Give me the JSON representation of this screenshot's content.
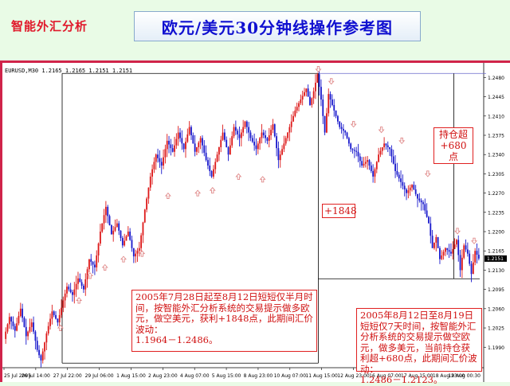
{
  "header": {
    "brand": "智能外汇分析",
    "title": "欧元/美元30分钟线操作参考图"
  },
  "chart_data": {
    "type": "candlestick",
    "symbol_info": "EURUSD,M30  1.2165 1.2165 1.2151 1.2151",
    "current_price": 1.2151,
    "current_price_label": "1.2151",
    "ylim": [
      1.196,
      1.2495
    ],
    "y_ticks": [
      "1.2480",
      "1.2445",
      "1.2410",
      "1.2375",
      "1.2340",
      "1.2305",
      "1.2270",
      "1.2235",
      "1.2200",
      "1.2165",
      "1.2130",
      "1.2095",
      "1.2060",
      "1.2025",
      "1.1990"
    ],
    "x_ticks": [
      "25 Jul 2005",
      "26 Jul 14:00",
      "27 Jul 22:00",
      "29 Jul 06:00",
      "1 Aug 15:00",
      "2 Aug 23:00",
      "4 Aug 07:00",
      "5 Aug 15:00",
      "8 Aug 23:00",
      "10 Aug 07:00",
      "11 Aug 15:00",
      "12 Aug 23:00",
      "16 Aug 07:00",
      "17 Aug 15:00",
      "18 Aug 23:00",
      "19 Aug 00:30"
    ],
    "price_path": [
      [
        0,
        1.2005
      ],
      [
        3,
        1.2045
      ],
      [
        6,
        1.202
      ],
      [
        9,
        1.206
      ],
      [
        12,
        1.201
      ],
      [
        15,
        1.2035
      ],
      [
        18,
        1.1985
      ],
      [
        20,
        1.1966
      ],
      [
        23,
        1.2015
      ],
      [
        26,
        1.2055
      ],
      [
        29,
        1.2035
      ],
      [
        32,
        1.2075
      ],
      [
        34,
        1.21
      ],
      [
        37,
        1.2085
      ],
      [
        40,
        1.2115
      ],
      [
        43,
        1.2095
      ],
      [
        46,
        1.215
      ],
      [
        49,
        1.2135
      ],
      [
        52,
        1.22
      ],
      [
        55,
        1.2245
      ],
      [
        58,
        1.2195
      ],
      [
        61,
        1.2215
      ],
      [
        64,
        1.2175
      ],
      [
        67,
        1.22
      ],
      [
        70,
        1.2155
      ],
      [
        73,
        1.217
      ],
      [
        76,
        1.224
      ],
      [
        79,
        1.23
      ],
      [
        82,
        1.234
      ],
      [
        85,
        1.232
      ],
      [
        88,
        1.2365
      ],
      [
        91,
        1.2345
      ],
      [
        94,
        1.238
      ],
      [
        97,
        1.235
      ],
      [
        100,
        1.239
      ],
      [
        103,
        1.2345
      ],
      [
        106,
        1.237
      ],
      [
        109,
        1.233
      ],
      [
        112,
        1.23
      ],
      [
        115,
        1.234
      ],
      [
        118,
        1.238
      ],
      [
        121,
        1.234
      ],
      [
        124,
        1.239
      ],
      [
        127,
        1.237
      ],
      [
        130,
        1.24
      ],
      [
        133,
        1.237
      ],
      [
        136,
        1.235
      ],
      [
        139,
        1.238
      ],
      [
        142,
        1.2365
      ],
      [
        145,
        1.2395
      ],
      [
        148,
        1.233
      ],
      [
        151,
        1.236
      ],
      [
        154,
        1.239
      ],
      [
        157,
        1.242
      ],
      [
        160,
        1.244
      ],
      [
        163,
        1.246
      ],
      [
        165,
        1.243
      ],
      [
        167,
        1.2455
      ],
      [
        169,
        1.2486
      ],
      [
        171,
        1.244
      ],
      [
        173,
        1.238
      ],
      [
        175,
        1.245
      ],
      [
        178,
        1.242
      ],
      [
        181,
        1.239
      ],
      [
        184,
        1.238
      ],
      [
        187,
        1.235
      ],
      [
        190,
        1.2345
      ],
      [
        193,
        1.232
      ],
      [
        196,
        1.233
      ],
      [
        199,
        1.23
      ],
      [
        202,
        1.234
      ],
      [
        205,
        1.236
      ],
      [
        208,
        1.235
      ],
      [
        211,
        1.231
      ],
      [
        214,
        1.229
      ],
      [
        217,
        1.227
      ],
      [
        220,
        1.2285
      ],
      [
        223,
        1.226
      ],
      [
        226,
        1.225
      ],
      [
        229,
        1.2215
      ],
      [
        231,
        1.217
      ],
      [
        233,
        1.219
      ],
      [
        235,
        1.215
      ],
      [
        238,
        1.217
      ],
      [
        241,
        1.216
      ],
      [
        244,
        1.2185
      ],
      [
        246,
        1.213
      ],
      [
        248,
        1.2175
      ],
      [
        250,
        1.216
      ],
      [
        252,
        1.2123
      ],
      [
        254,
        1.2165
      ],
      [
        256,
        1.2151
      ]
    ],
    "buy_arrows": [
      [
        30,
        1.203
      ],
      [
        40,
        1.208
      ],
      [
        46,
        1.2125
      ],
      [
        54,
        1.214
      ],
      [
        64,
        1.2155
      ],
      [
        74,
        1.2165
      ],
      [
        88,
        1.227
      ],
      [
        104,
        1.2275
      ],
      [
        112,
        1.228
      ],
      [
        126,
        1.2305
      ],
      [
        139,
        1.23
      ]
    ],
    "sell_arrows": [
      [
        169,
        1.249
      ],
      [
        176,
        1.2468
      ],
      [
        188,
        1.239
      ],
      [
        203,
        1.238
      ],
      [
        214,
        1.236
      ],
      [
        228,
        1.23
      ],
      [
        244,
        1.2196
      ],
      [
        253,
        1.2178
      ]
    ],
    "long_period": {
      "start": 20,
      "end": 169,
      "low": 1.1964,
      "high": 1.2486
    },
    "short_period": {
      "start": 169,
      "end": 256,
      "high": 1.2486,
      "low": 1.2123
    },
    "annotations": {
      "long_gain": "+1848",
      "short_gain": "持仓超\n+680点",
      "long_note": "2005年7月28日起至8月12日短短仅半月时间，按智能外汇分析系统的交易提示做多欧元，做空美元，获利+1848点，此期间汇价波动：\n1.1964－1.2486。",
      "short_note": "2005年8月12日至8月19日短短仅7天时间，按智能外汇分析系统的交易提示做空欧元，做多美元，当前持仓获利超+680点，此期间汇价波动：\n1.2486－1.2123。"
    },
    "colors": {
      "bull": "#dd1818",
      "bear": "#1818cc",
      "buy_arrow": "#e08a8a",
      "sell_arrow": "#e08a8a",
      "line": "#000000"
    }
  }
}
